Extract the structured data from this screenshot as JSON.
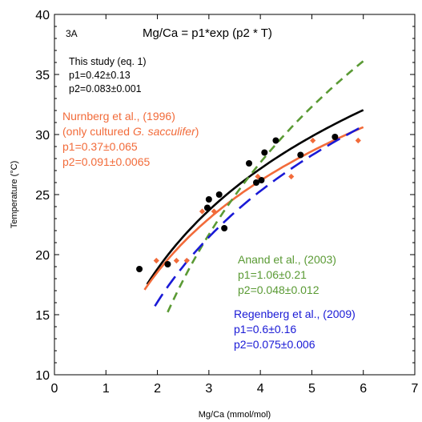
{
  "chart_data": {
    "type": "scatter",
    "panel_label": "3A",
    "xlabel": "Mg/Ca (mmol/mol)",
    "ylabel": "Temperature (°C)",
    "xlim": [
      0,
      7
    ],
    "ylim": [
      10,
      40
    ],
    "xticks": [
      0,
      1,
      2,
      3,
      4,
      5,
      6,
      7
    ],
    "yticks": [
      10,
      15,
      20,
      25,
      30,
      35,
      40
    ],
    "equation": "Mg/Ca = p1*exp (p2 * T)",
    "colors": {
      "black": "#000000",
      "orange": "#f26b3a",
      "green": "#5a9a34",
      "blue": "#1a1ad6"
    },
    "annotations": {
      "this_study": {
        "line1": "This study (eq. 1)",
        "line2": "p1=0.42±0.13",
        "line3": "p2=0.083±0.001"
      },
      "nurnberg": {
        "line1": "Nurnberg et al., (1996)",
        "line2_prefix": "(only cultured ",
        "line2_species": "G. sacculifer",
        "line2_suffix": ")",
        "line3": "p1=0.37±0.065",
        "line4": "p2=0.091±0.0065"
      },
      "anand": {
        "line1": "Anand et al., (2003)",
        "line2": "p1=1.06±0.21",
        "line3": "p2=0.048±0.012"
      },
      "regenberg": {
        "line1": "Regenberg et al., (2009)",
        "line2": "p1=0.6±0.16",
        "line3": "p2=0.075±0.006"
      }
    },
    "series": [
      {
        "kind": "points",
        "marker": "circle",
        "color": "#000000",
        "points": [
          [
            1.65,
            18.8
          ],
          [
            2.2,
            19.2
          ],
          [
            2.97,
            23.9
          ],
          [
            3.0,
            24.6
          ],
          [
            3.2,
            25.0
          ],
          [
            3.3,
            22.2
          ],
          [
            3.78,
            27.6
          ],
          [
            3.92,
            26.0
          ],
          [
            4.02,
            26.2
          ],
          [
            4.08,
            28.5
          ],
          [
            4.3,
            29.5
          ],
          [
            4.78,
            28.3
          ],
          [
            5.45,
            29.8
          ]
        ]
      },
      {
        "kind": "points",
        "marker": "diamond",
        "color": "#f26b3a",
        "points": [
          [
            1.98,
            19.5
          ],
          [
            2.37,
            19.5
          ],
          [
            2.57,
            19.5
          ],
          [
            2.87,
            23.6
          ],
          [
            3.1,
            23.6
          ],
          [
            3.95,
            26.5
          ],
          [
            4.6,
            26.5
          ],
          [
            5.02,
            29.5
          ],
          [
            5.9,
            29.5
          ]
        ]
      },
      {
        "kind": "curve",
        "style": "solid",
        "color": "#000000",
        "p1": 0.42,
        "p2": 0.083,
        "mgca_range": [
          1.8,
          6.0
        ]
      },
      {
        "kind": "curve",
        "style": "solid",
        "color": "#f26b3a",
        "p1": 0.37,
        "p2": 0.091,
        "mgca_range": [
          1.75,
          6.0
        ]
      },
      {
        "kind": "curve",
        "style": "dashed",
        "color": "#5a9a34",
        "p1": 1.06,
        "p2": 0.048,
        "mgca_range": [
          2.2,
          6.0
        ]
      },
      {
        "kind": "curve",
        "style": "longdash",
        "color": "#1a1ad6",
        "p1": 0.6,
        "p2": 0.075,
        "mgca_range": [
          1.95,
          6.0
        ]
      }
    ]
  }
}
